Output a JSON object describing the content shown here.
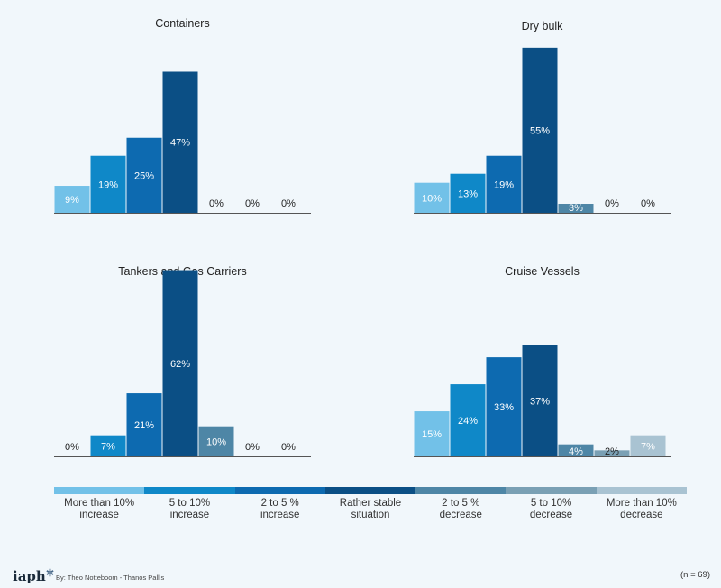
{
  "colors": [
    "#72c1e8",
    "#0f88c8",
    "#0d6ab0",
    "#0b4f85",
    "#4e86a6",
    "#7aa0b4",
    "#a9c3d2"
  ],
  "chart_data": [
    {
      "type": "bar",
      "title": "Containers",
      "categories": [
        "More than 10% increase",
        "5 to 10% increase",
        "2 to 5 % increase",
        "Rather stable situation",
        "2 to 5 % decrease",
        "5 to 10% decrease",
        "More than 10% decrease"
      ],
      "values": [
        9,
        19,
        25,
        47,
        0,
        0,
        0
      ],
      "labels": [
        "9%",
        "19%",
        "25%",
        "47%",
        "0%",
        "0%",
        "0%"
      ]
    },
    {
      "type": "bar",
      "title": "Dry bulk",
      "categories": [
        "More than 10% increase",
        "5 to 10% increase",
        "2 to 5 % increase",
        "Rather stable situation",
        "2 to 5 % decrease",
        "5 to 10% decrease",
        "More than 10% decrease"
      ],
      "values": [
        10,
        13,
        19,
        55,
        3,
        0,
        0
      ],
      "labels": [
        "10%",
        "13%",
        "19%",
        "55%",
        "3%",
        "0%",
        "0%"
      ]
    },
    {
      "type": "bar",
      "title": "Tankers and Gas Carriers",
      "categories": [
        "More than 10% increase",
        "5 to 10% increase",
        "2 to 5 % increase",
        "Rather stable situation",
        "2 to 5 % decrease",
        "5 to 10% decrease",
        "More than 10% decrease"
      ],
      "values": [
        0,
        7,
        21,
        62,
        10,
        0,
        0
      ],
      "labels": [
        "0%",
        "7%",
        "21%",
        "62%",
        "10%",
        "0%",
        "0%"
      ]
    },
    {
      "type": "bar",
      "title": "Cruise Vessels",
      "categories": [
        "More than 10% increase",
        "5 to 10% increase",
        "2 to 5 % increase",
        "Rather stable situation",
        "2 to 5 % decrease",
        "5 to 10% decrease",
        "More than 10% decrease"
      ],
      "values": [
        15,
        24,
        33,
        37,
        4,
        2,
        7
      ],
      "labels": [
        "15%",
        "24%",
        "33%",
        "37%",
        "4%",
        "2%",
        "7%"
      ]
    }
  ],
  "legend": [
    "More than 10% increase",
    "5 to 10% increase",
    "2 to 5 % increase",
    "Rather stable situation",
    "2 to 5 % decrease",
    "5 to 10% decrease",
    "More than 10% decrease"
  ],
  "footer": {
    "logo": "iaph",
    "logo_icon": "gear-icon",
    "credit": "By: Theo Notteboom - Thanos Pallis",
    "n": "(n = 69)"
  }
}
